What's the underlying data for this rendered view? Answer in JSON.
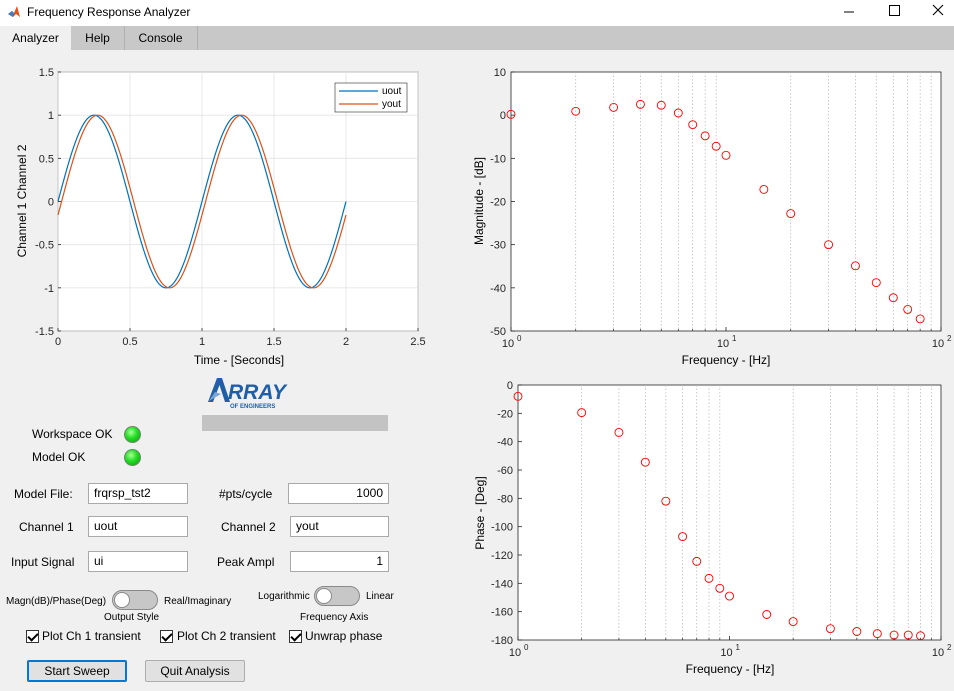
{
  "window": {
    "title": "Frequency Response Analyzer"
  },
  "menu": {
    "tabs": [
      "Analyzer",
      "Help",
      "Console"
    ]
  },
  "logo": {
    "text": "RRAY",
    "sub": "OF ENGINEERS"
  },
  "status": {
    "workspace_label": "Workspace OK",
    "model_label": "Model OK",
    "lamp_color": "#22dd22"
  },
  "form": {
    "model_file_label": "Model File:",
    "model_file_value": "frqrsp_tst2",
    "pts_label": "#pts/cycle",
    "pts_value": "1000",
    "ch1_label": "Channel 1",
    "ch1_value": "uout",
    "ch2_label": "Channel 2",
    "ch2_value": "yout",
    "input_label": "Input Signal",
    "input_value": "ui",
    "peak_label": "Peak Ampl",
    "peak_value": "1"
  },
  "switches": {
    "output_left": "Magn(dB)/Phase(Deg)",
    "output_right": "Real/Imaginary",
    "output_caption": "Output Style",
    "output_state": "Magn(dB)/Phase(Deg)",
    "axis_left": "Logarithmic",
    "axis_right": "Linear",
    "axis_caption": "Frequency Axis",
    "axis_state": "Logarithmic"
  },
  "checks": {
    "ch1_transient": "Plot Ch 1 transient",
    "ch2_transient": "Plot Ch 2 transient",
    "unwrap": "Unwrap phase"
  },
  "buttons": {
    "start": "Start Sweep",
    "quit": "Quit Analysis"
  },
  "colors": {
    "uout": "#0072bd",
    "yout": "#d95319",
    "marker": "#ff0000"
  },
  "chart_data": [
    {
      "type": "line",
      "xlabel": "Time - [Seconds]",
      "ylabel": "Channel 1 Channel 2",
      "xlim": [
        0,
        2.5
      ],
      "ylim": [
        -1.5,
        1.5
      ],
      "xticks": [
        "0",
        "0.5",
        "1",
        "1.5",
        "2",
        "2.5"
      ],
      "yticks": [
        "1.5",
        "1",
        "0.5",
        "0",
        "-0.5",
        "-1",
        "-1.5"
      ],
      "legend": "top-right",
      "grid": true,
      "series": [
        {
          "name": "uout",
          "function": "sin(2*pi*t)",
          "t_range": [
            0,
            2
          ],
          "peak_value": 1.0
        },
        {
          "name": "yout",
          "function": "sin(2*pi*t - phase)",
          "t_range": [
            0,
            2
          ],
          "peak_value": 1.0,
          "lag_seconds": 0.025
        }
      ]
    },
    {
      "type": "scatter",
      "xlabel": "Frequency - [Hz]",
      "ylabel": "Magnitude - [dB]",
      "xscale": "log",
      "xlim": [
        1,
        100
      ],
      "ylim": [
        -50,
        10
      ],
      "yticks": [
        "10",
        "0",
        "-10",
        "-20",
        "-30",
        "-40",
        "-50"
      ],
      "grid": "x-minor-dotted",
      "x": [
        1,
        2,
        3,
        4,
        5,
        6,
        7,
        8,
        9,
        10,
        15,
        20,
        30,
        40,
        50,
        60,
        70,
        80
      ],
      "y": [
        0.2,
        0.9,
        1.8,
        2.5,
        2.3,
        0.5,
        -2.2,
        -4.8,
        -7.2,
        -9.3,
        -17.2,
        -22.8,
        -30.0,
        -34.9,
        -38.8,
        -42.3,
        -45.0,
        -47.2
      ]
    },
    {
      "type": "scatter",
      "xlabel": "Frequency - [Hz]",
      "ylabel": "Phase - [Deg]",
      "xscale": "log",
      "xlim": [
        1,
        100
      ],
      "ylim": [
        -180,
        0
      ],
      "yticks": [
        "0",
        "-20",
        "-40",
        "-60",
        "-80",
        "-100",
        "-120",
        "-140",
        "-160",
        "-180"
      ],
      "grid": "x-minor-dotted",
      "x": [
        1,
        2,
        3,
        4,
        5,
        6,
        7,
        8,
        9,
        10,
        15,
        20,
        30,
        40,
        50,
        60,
        70,
        80
      ],
      "y": [
        -8,
        -19.5,
        -33.5,
        -54.5,
        -82,
        -107,
        -124.5,
        -136.5,
        -143.5,
        -149,
        -162,
        -167,
        -172,
        -174,
        -175.5,
        -176.5,
        -176.5,
        -177
      ]
    }
  ]
}
